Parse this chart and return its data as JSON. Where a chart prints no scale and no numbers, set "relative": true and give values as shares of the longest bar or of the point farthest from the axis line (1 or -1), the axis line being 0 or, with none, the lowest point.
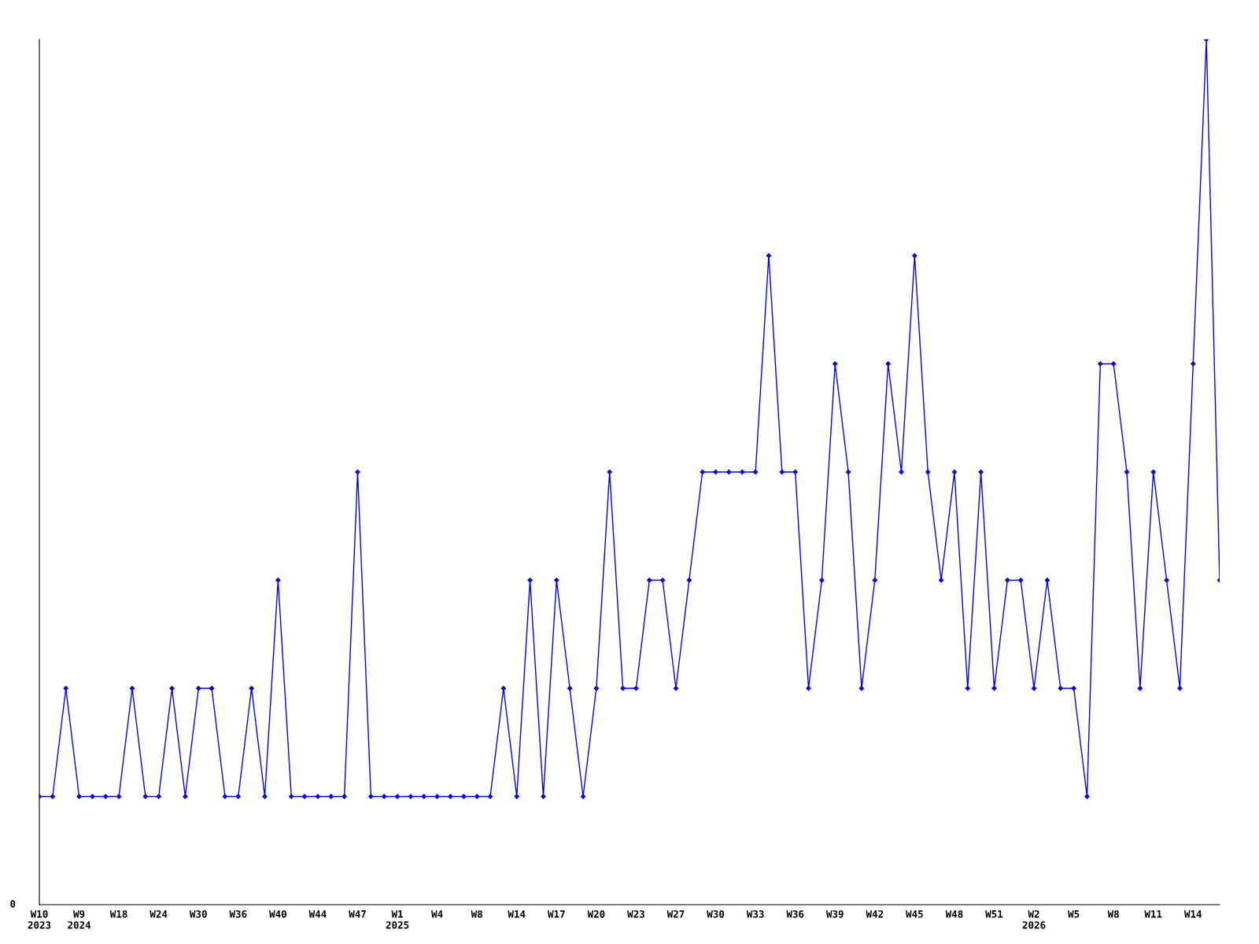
{
  "chart_data": {
    "type": "line",
    "relative": true,
    "categories": [
      "W10\n2023",
      null,
      null,
      "W9\n2024",
      null,
      null,
      "W18",
      null,
      null,
      "W24",
      null,
      null,
      "W30",
      null,
      null,
      "W36",
      null,
      null,
      "W40",
      null,
      null,
      "W44",
      null,
      null,
      "W47",
      null,
      null,
      "W1\n2025",
      null,
      null,
      "W4",
      null,
      null,
      "W8",
      null,
      null,
      "W14",
      null,
      null,
      "W17",
      null,
      null,
      "W20",
      null,
      null,
      "W23",
      null,
      null,
      "W27",
      null,
      null,
      "W30",
      null,
      null,
      "W33",
      null,
      null,
      "W36",
      null,
      null,
      "W39",
      null,
      null,
      "W42",
      null,
      null,
      "W45",
      null,
      null,
      "W48",
      null,
      null,
      "W51",
      null,
      null,
      "W2\n2026",
      null,
      null,
      "W5",
      null,
      null,
      "W8",
      null,
      null,
      "W11",
      null,
      null,
      "W14",
      null,
      null
    ],
    "series": [
      {
        "color": "#0000ff",
        "values": [
          0.125,
          0.125,
          0.25,
          0.125,
          0.125,
          0.125,
          0.125,
          0.25,
          0.125,
          0.125,
          0.25,
          0.125,
          0.25,
          0.25,
          0.125,
          0.125,
          0.25,
          0.125,
          0.375,
          0.125,
          0.125,
          0.125,
          0.125,
          0.125,
          0.5,
          0.125,
          0.125,
          0.125,
          0.125,
          0.125,
          0.125,
          0.125,
          0.125,
          0.125,
          0.125,
          0.25,
          0.125,
          0.375,
          0.125,
          0.375,
          0.25,
          0.125,
          0.25,
          0.5,
          0.25,
          0.25,
          0.375,
          0.375,
          0.25,
          0.375,
          0.5,
          0.5,
          0.5,
          0.5,
          0.5,
          0.75,
          0.5,
          0.5,
          0.25,
          0.375,
          0.625,
          0.5,
          0.25,
          0.375,
          0.625,
          0.5,
          0.75,
          0.5,
          0.375,
          0.5,
          0.25,
          0.5,
          0.25,
          0.375,
          0.375,
          0.25,
          0.375,
          0.25,
          0.25,
          0.125,
          0.625,
          0.625,
          0.5,
          0.25,
          0.5,
          0.375,
          0.25,
          0.625,
          1,
          0.375
        ]
      }
    ],
    "marker": "diamond",
    "line_style": "solid",
    "grid": false,
    "legend": false,
    "annotations": [
      "0"
    ]
  }
}
